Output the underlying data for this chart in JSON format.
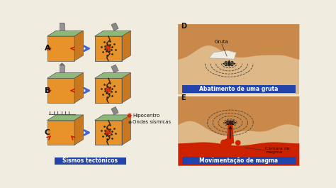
{
  "bg_color": "#f0ece0",
  "left_panel": {
    "label_A": "A",
    "label_B": "B",
    "label_C": "C",
    "block_color": "#e8922a",
    "block_top_color": "#8db87a",
    "block_side_color": "#c97820",
    "arrow_color": "#cc2200",
    "blue_arrow_color": "#4466cc",
    "caption": "Sismos tectónicos",
    "caption_bg": "#2244aa",
    "caption_fg": "#ffffff",
    "legend_hipocentro": "Hipocentro",
    "legend_ondas": "Ondas sísmicas",
    "star_color": "#dd3311",
    "dot_color": "#222222"
  },
  "right_panel": {
    "label_D": "D",
    "label_E": "E",
    "sandy_light": "#deb887",
    "sandy_mid": "#c8894a",
    "sandy_dark": "#b07040",
    "cave_white": "#f0ece0",
    "magma_red": "#cc2200",
    "magma_orange": "#ff4400",
    "caption_D": "Abatimento de uma gruta",
    "caption_E": "Movimentação de magma",
    "caption_bg": "#2244aa",
    "caption_fg": "#ffffff",
    "label_gruta": "Gruta",
    "label_camara": "Câmara de\nmagma",
    "dashed_color": "#444444",
    "arrow_color": "#111111"
  }
}
